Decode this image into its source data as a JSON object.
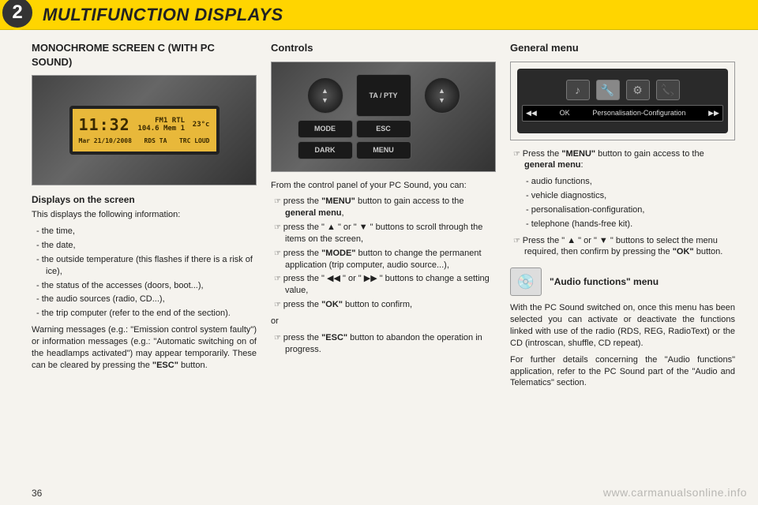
{
  "header": {
    "chapter_number": "2",
    "title": "MULTIFUNCTION DISPLAYS"
  },
  "page_number": "36",
  "watermark": "www.carmanualsonline.info",
  "col1": {
    "h1": "MONOCHROME SCREEN C (WITH PC SOUND)",
    "screen_demo": {
      "time": "11:32",
      "fm_label": "FM1",
      "freq": "104.6",
      "station": "RTL",
      "mem": "Mem 1",
      "temp": "23°c",
      "date": "Mar 21/10/2008",
      "rds": "RDS TA",
      "trc": "TRC LOUD"
    },
    "h2": "Displays on the screen",
    "intro": "This displays the following information:",
    "items": [
      "the time,",
      "the date,",
      "the outside temperature (this flashes if there is a risk of ice),",
      "the status of the accesses (doors, boot...),",
      "the audio sources (radio, CD...),",
      "the trip computer (refer to the end of the section)."
    ],
    "warning_html": "Warning messages (e.g.: \"Emission control system faulty\") or information messages (e.g.: \"Automatic switching on of the headlamps activated\") may appear temporarily. These can be cleared by pressing the <b>\"ESC\"</b> button."
  },
  "col2": {
    "h1": "Controls",
    "buttons": {
      "ta_pty": "TA / PTY",
      "mode": "MODE",
      "esc": "ESC",
      "dark": "DARK",
      "menu": "MENU"
    },
    "intro": "From the control panel of your PC Sound, you can:",
    "items_html": [
      "press the <b>\"MENU\"</b> button to gain access to the <b>general menu</b>,",
      "press the \" ▲ \" or \" ▼ \" buttons to scroll through the items on the screen,",
      "press the <b>\"MODE\"</b> button to change the permanent application (trip computer, audio source...),",
      "press the \" ◀◀ \" or \" ▶▶ \" buttons to change a setting value,",
      "press the <b>\"OK\"</b> button to confirm,"
    ],
    "or": "or",
    "last_item_html": "press the <b>\"ESC\"</b> button to abandon the operation in progress."
  },
  "col3": {
    "h1": "General menu",
    "menu_demo": {
      "label": "Personalisation-Configuration",
      "left_arrow": "◀◀",
      "ok": "OK",
      "right_arrow": "▶▶",
      "icons": [
        "♪",
        "🔧",
        "⚙",
        "📞"
      ]
    },
    "steps_html": [
      "Press the <b>\"MENU\"</b> button to gain access to the <b>general menu</b>:"
    ],
    "submenu": [
      "audio functions,",
      "vehicle diagnostics,",
      "personalisation-configuration,",
      "telephone (hands-free kit)."
    ],
    "step2_html": "Press the \" ▲ \" or \" ▼ \" buttons to select the menu required, then confirm by pressing the <b>\"OK\"</b> button.",
    "audio_heading": "\"Audio functions\" menu",
    "audio_p1": "With the PC Sound switched on, once this menu has been selected you can activate or deactivate the functions linked with use of the radio (RDS, REG, RadioText) or the CD (introscan, shuffle, CD repeat).",
    "audio_p2": "For further details concerning the \"Audio functions\" application, refer to the PC Sound part of the \"Audio and Telematics\" section."
  }
}
